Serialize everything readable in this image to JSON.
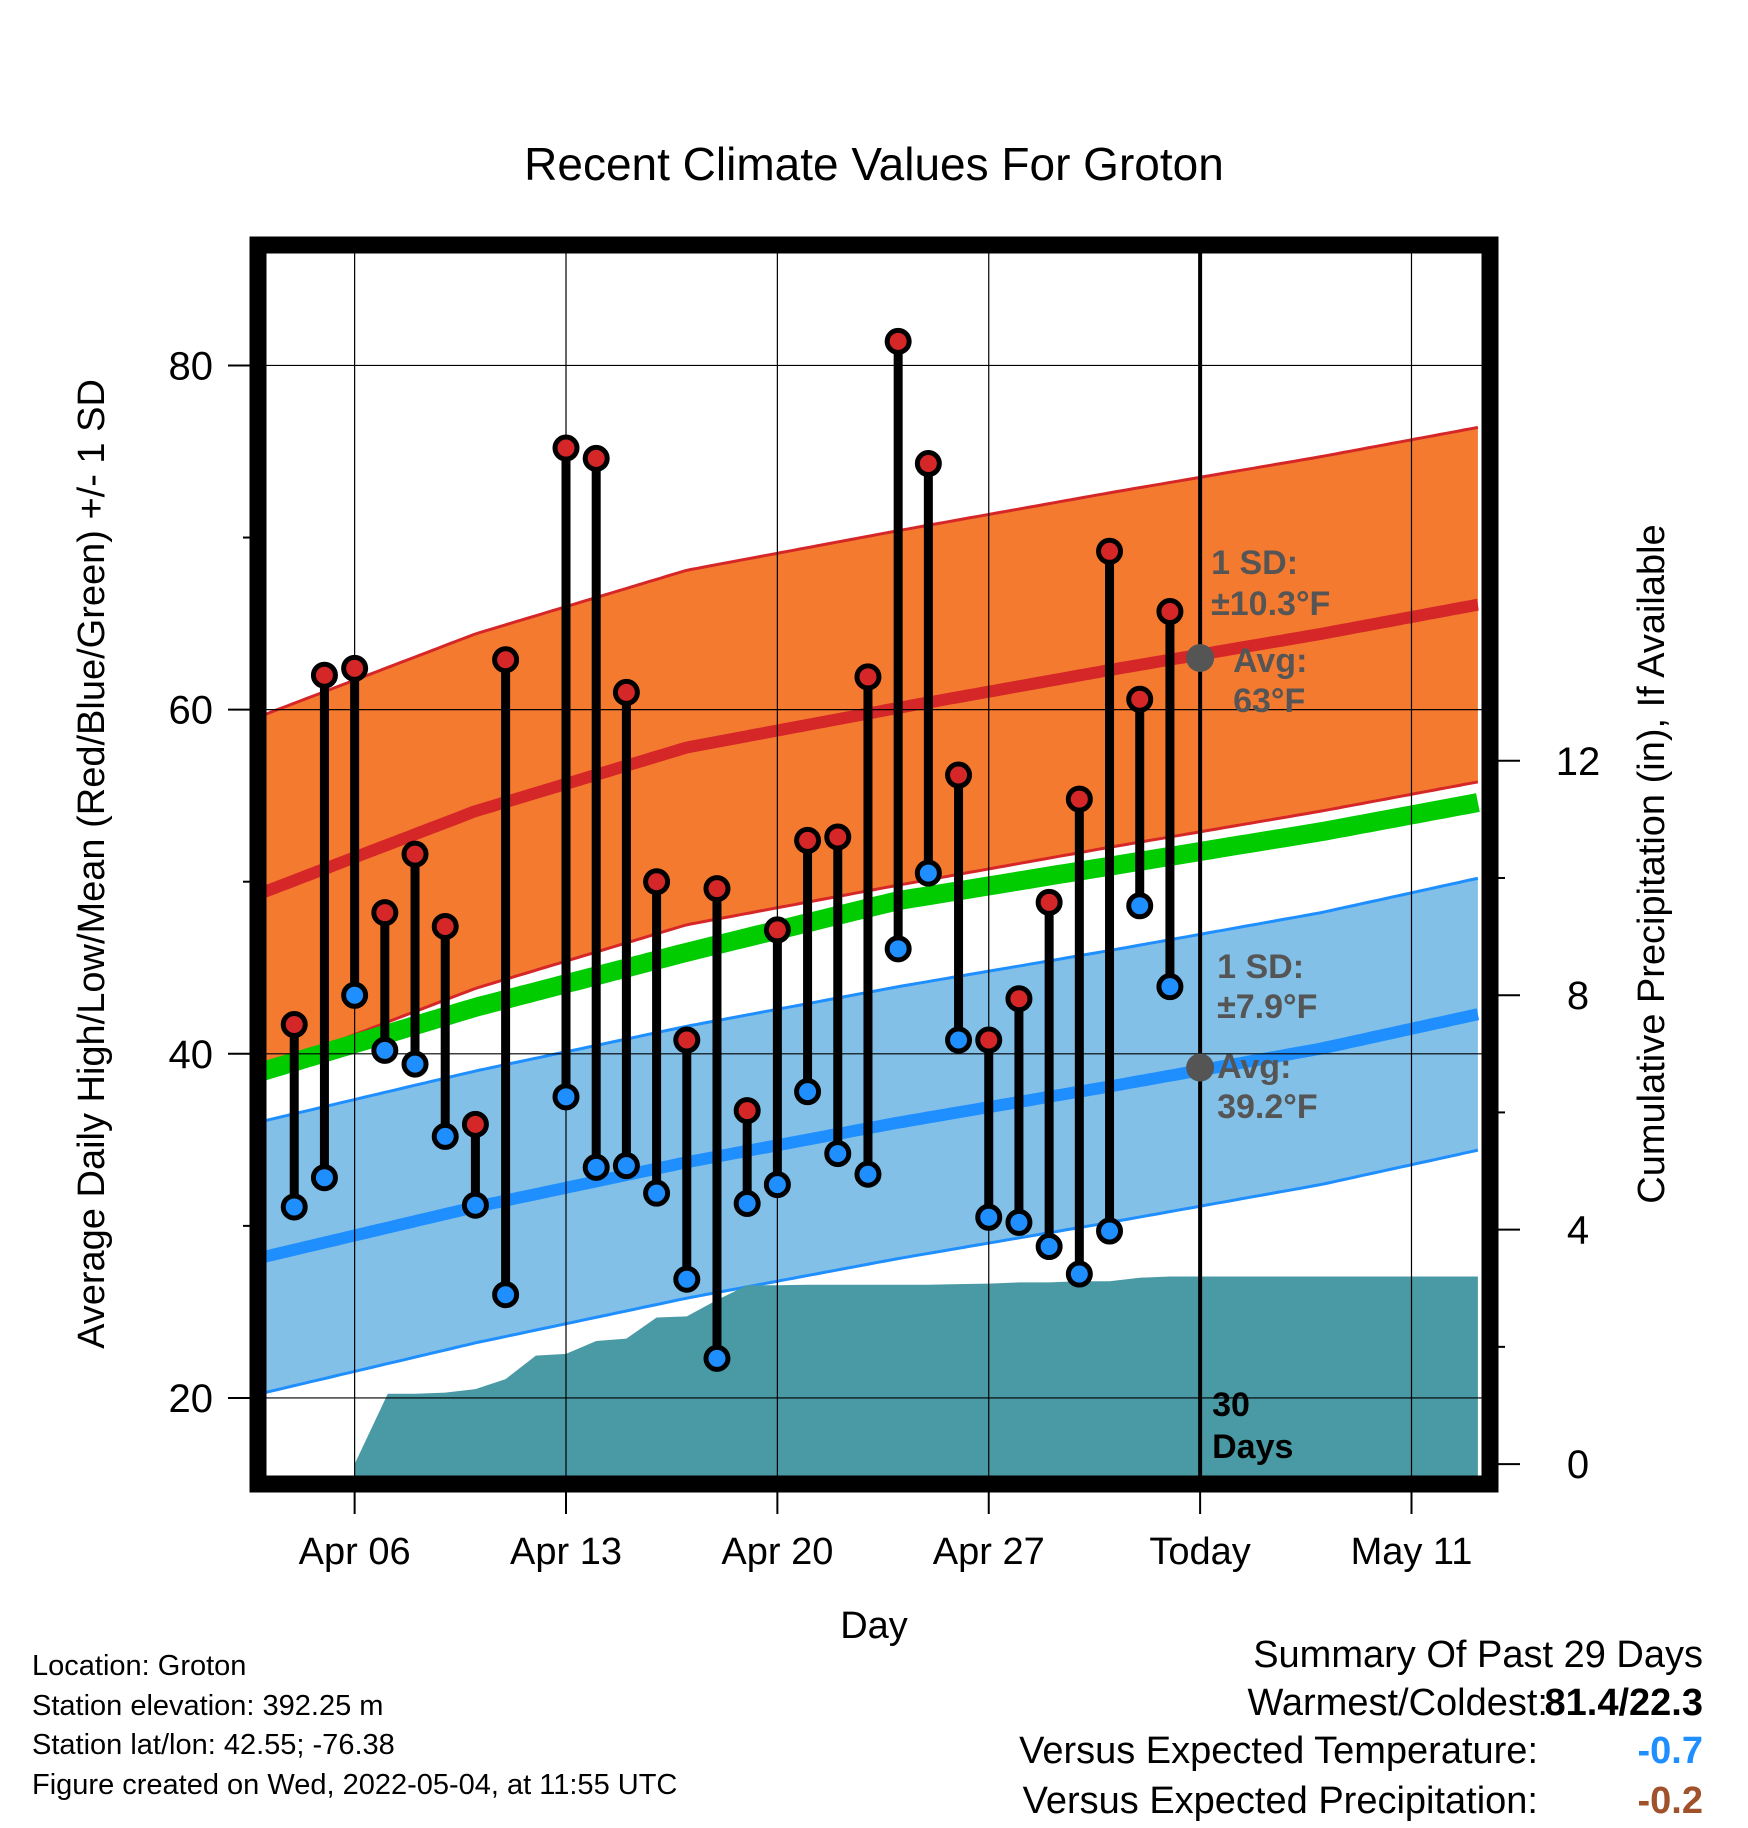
{
  "chart_data": {
    "type": "line",
    "title": "Recent Climate Values For Groton",
    "xlabel": "Day",
    "ylabel": "Average Daily High/Low/Mean (Red/Blue/Green) +/- 1 SD",
    "ylabel_right": "Cumulative Precipitation (in), If Available",
    "x_tick_labels": [
      "Apr 06",
      "Apr 13",
      "Apr 20",
      "Apr 27",
      "Today",
      "May 11"
    ],
    "x_tick_days": [
      6,
      13,
      20,
      27,
      34,
      41
    ],
    "xlim": [
      2.8,
      43.6
    ],
    "ylim": [
      15,
      87
    ],
    "y_ticks": [
      20,
      40,
      60,
      80
    ],
    "y2lim": [
      -0.34,
      20.8
    ],
    "y2_ticks": [
      0,
      4,
      8,
      12
    ],
    "days": [
      4,
      5,
      6,
      7,
      8,
      9,
      10,
      11,
      13,
      14,
      15,
      16,
      17,
      18,
      19,
      20,
      21,
      22,
      23,
      24,
      25,
      26,
      27,
      28,
      29,
      30,
      31,
      32,
      33
    ],
    "daily_high": [
      41.7,
      62.0,
      62.4,
      48.2,
      51.6,
      47.4,
      35.9,
      62.9,
      75.2,
      74.6,
      61.0,
      50.0,
      40.8,
      49.6,
      36.7,
      47.2,
      52.4,
      52.6,
      61.9,
      81.4,
      74.3,
      56.2,
      40.8,
      43.2,
      48.8,
      54.8,
      69.2,
      60.6,
      65.7
    ],
    "daily_low": [
      31.1,
      32.8,
      43.4,
      40.2,
      39.4,
      35.2,
      31.2,
      26.0,
      37.5,
      33.4,
      33.5,
      31.9,
      26.9,
      22.3,
      31.3,
      32.4,
      37.8,
      34.2,
      33.0,
      46.1,
      50.5,
      40.8,
      30.5,
      30.2,
      28.8,
      27.2,
      29.7,
      48.6,
      43.9
    ],
    "normal_high": {
      "x": [
        3,
        10,
        17,
        24,
        31,
        38,
        43.2
      ],
      "y": [
        49.4,
        54.1,
        57.8,
        60.1,
        62.3,
        64.4,
        66.1
      ]
    },
    "normal_high_sd": 10.3,
    "normal_low": {
      "x": [
        3,
        10,
        17,
        24,
        31,
        38,
        43.2
      ],
      "y": [
        28.2,
        31.1,
        33.7,
        36.0,
        38.1,
        40.3,
        42.3
      ]
    },
    "normal_low_sd": 7.9,
    "normal_mean": {
      "x": [
        3,
        10,
        17,
        24,
        31,
        38,
        43.2
      ],
      "y": [
        39.0,
        42.7,
        45.9,
        48.9,
        50.9,
        52.9,
        54.6
      ]
    },
    "precip_cumulative": {
      "x": [
        6,
        7.1,
        8,
        9,
        10,
        11,
        12,
        13,
        14,
        15,
        16,
        17,
        18,
        19,
        20,
        21,
        22,
        23,
        24,
        25,
        26,
        27,
        28,
        29,
        30,
        31,
        32,
        33,
        34,
        43.2
      ],
      "y": [
        0,
        1.2,
        1.2,
        1.22,
        1.28,
        1.45,
        1.85,
        1.88,
        2.1,
        2.14,
        2.5,
        2.52,
        2.8,
        3.05,
        3.05,
        3.06,
        3.06,
        3.06,
        3.06,
        3.06,
        3.07,
        3.08,
        3.1,
        3.1,
        3.12,
        3.12,
        3.18,
        3.2,
        3.2,
        3.2
      ]
    },
    "today_day": 34,
    "annotations": {
      "high_sd_label": "1 SD:",
      "high_sd_value": "±10.3°F",
      "high_avg_label": "Avg:",
      "high_avg_value": "63°F",
      "high_avg": 63,
      "low_sd_label": "1 SD:",
      "low_sd_value": "±7.9°F",
      "low_avg_label": "Avg:",
      "low_avg_value": "39.2°F",
      "low_avg": 39.2,
      "days_label_1": "30",
      "days_label_2": "Days"
    },
    "colors": {
      "high_band": "#f47a30",
      "high_line": "#d62728",
      "low_band": "#82c0e8",
      "low_line": "#1f8fff",
      "mean_line": "#00cc00",
      "precip": "#4a9aa5",
      "high_marker": "#d62728",
      "low_marker": "#1f8fff",
      "annotation_text": "#555555"
    }
  },
  "info": {
    "location": "Location: Groton",
    "elevation": "Station elevation: 392.25 m",
    "latlon": "Station lat/lon: 42.55; -76.38",
    "created": "Figure created on Wed, 2022-05-04, at 11:55 UTC"
  },
  "summary": {
    "title": "Summary Of Past 29 Days",
    "warmest_coldest_label": "Warmest/Coldest:",
    "warmest_coldest_value": "81.4/22.3",
    "temp_label": "Versus Expected Temperature:",
    "temp_value": "-0.7",
    "temp_color": "#1f8fff",
    "precip_label": "Versus Expected Precipitation:",
    "precip_value": "-0.2",
    "precip_color": "#a0522d"
  }
}
